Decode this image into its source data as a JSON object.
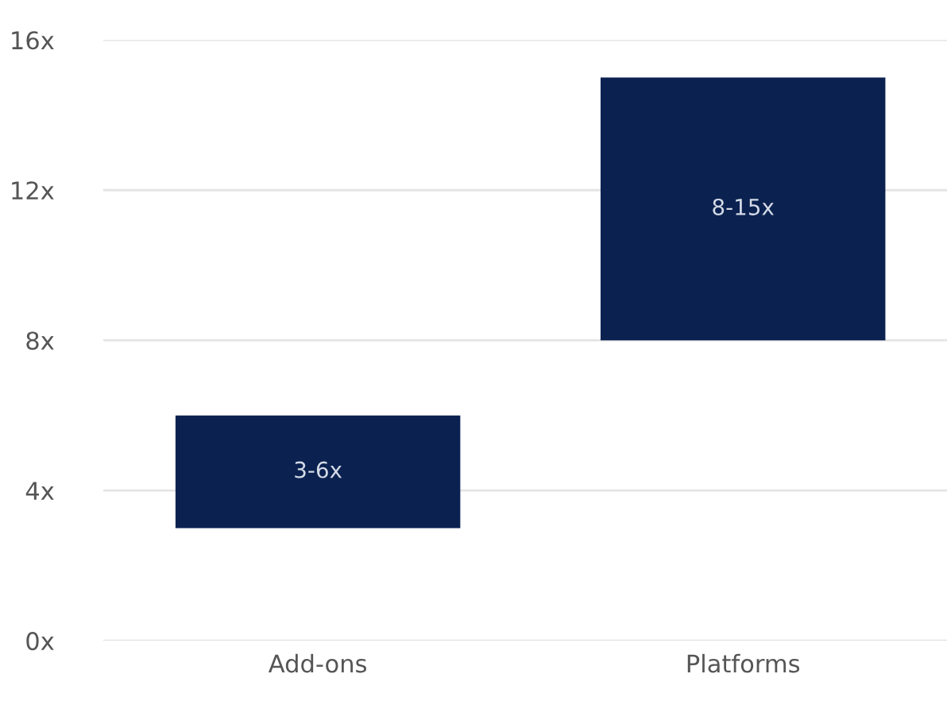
{
  "chart_data": {
    "type": "bar",
    "categories": [
      "Add-ons",
      "Platforms"
    ],
    "base": [
      3,
      8
    ],
    "values": [
      3,
      7
    ],
    "color": "#0b2251",
    "value_labels": [
      "3-6x",
      "8-15x"
    ],
    "ylim": [
      0,
      16
    ],
    "yticks": [
      {
        "value": 0,
        "label": "0x"
      },
      {
        "value": 4,
        "label": "4x"
      },
      {
        "value": 8,
        "label": "8x"
      },
      {
        "value": 12,
        "label": "12x"
      },
      {
        "value": 16,
        "label": "16x"
      }
    ],
    "grid": "y"
  }
}
